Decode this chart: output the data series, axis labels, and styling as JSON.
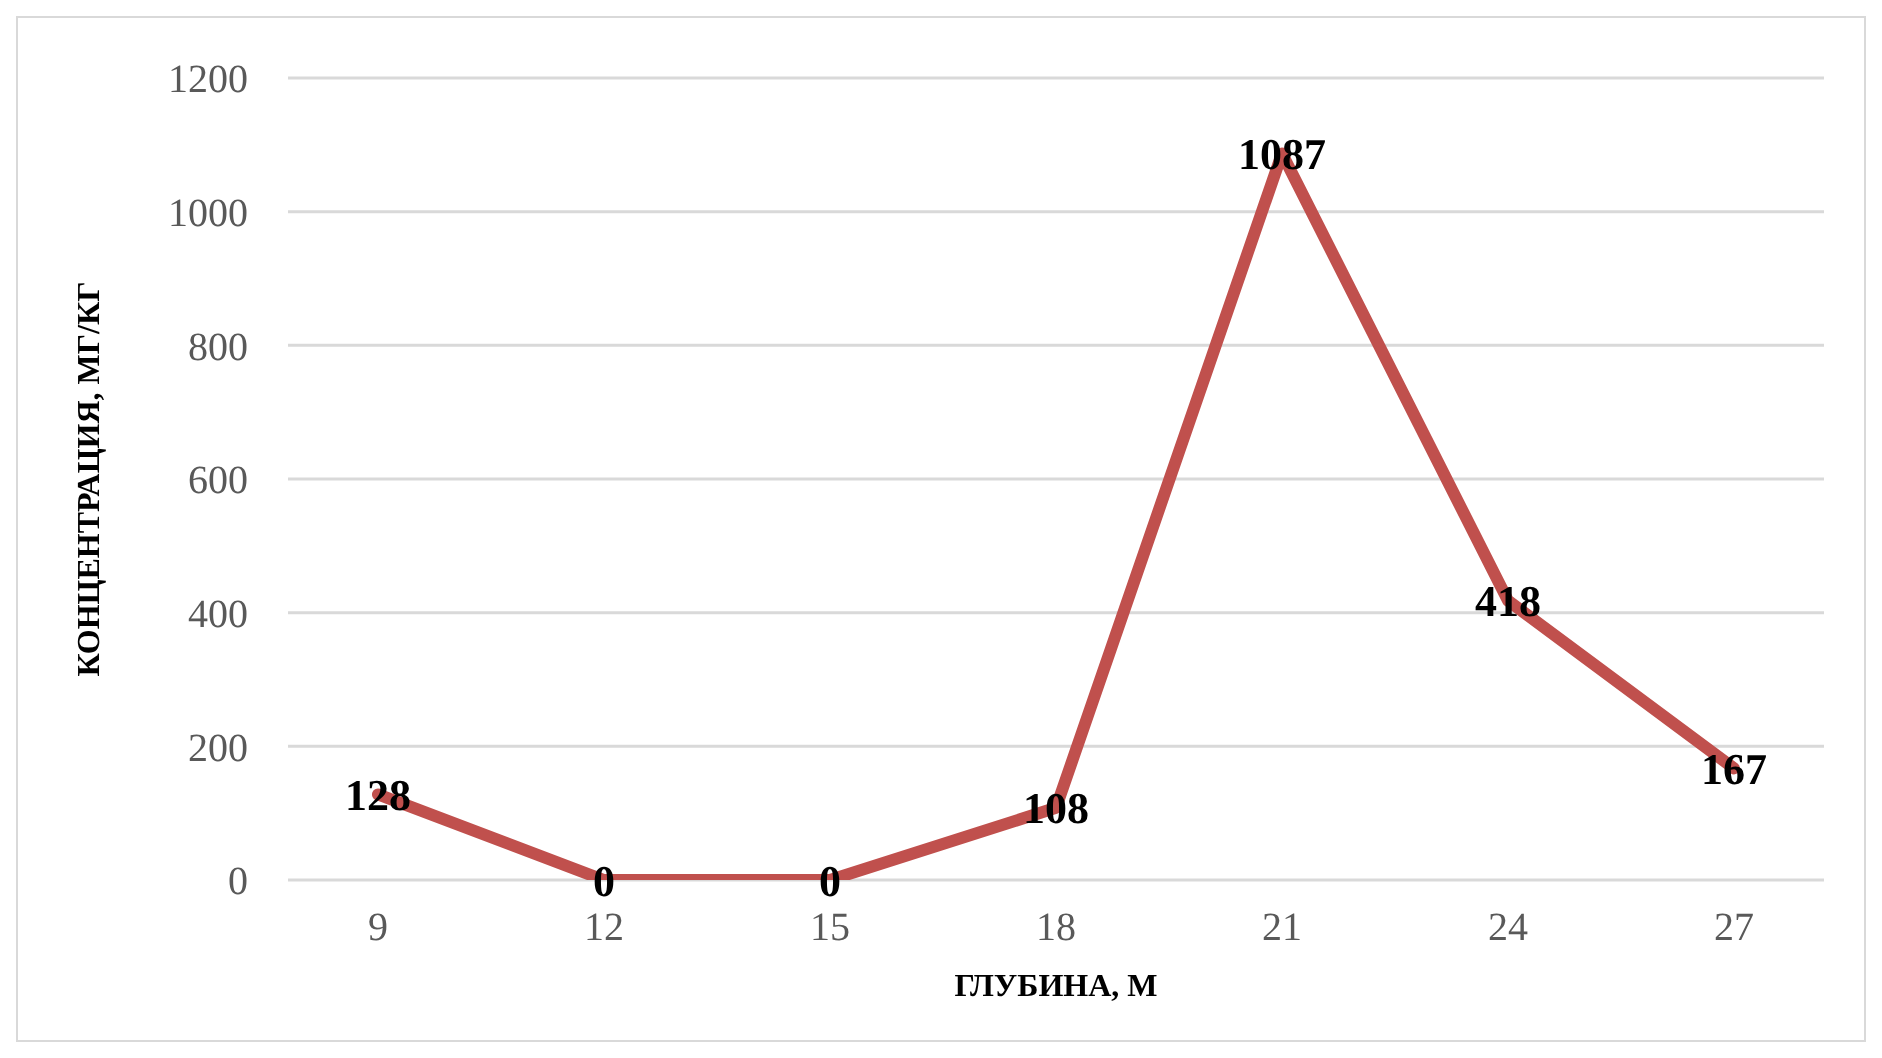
{
  "chart_data": {
    "type": "line",
    "xlabel": "ГЛУБИНА, М",
    "ylabel": "КОНЦЕНТРАЦИЯ, МГ/КГ",
    "categories": [
      "9",
      "12",
      "15",
      "18",
      "21",
      "24",
      "27"
    ],
    "series": [
      {
        "color": "#c0504d",
        "values": [
          128,
          0,
          0,
          108,
          1087,
          418,
          167
        ]
      }
    ],
    "ylim": [
      0,
      1200
    ],
    "yticks": [
      0,
      200,
      400,
      600,
      800,
      1000,
      1200
    ],
    "grid": "y",
    "data_labels": true,
    "marker": "none"
  }
}
